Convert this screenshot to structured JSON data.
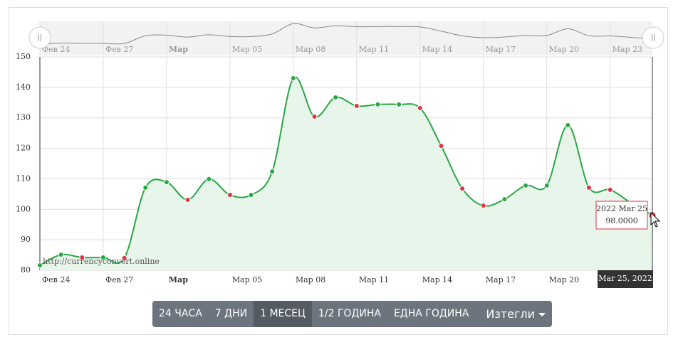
{
  "chart_data": {
    "type": "area",
    "categories": [
      "Фев 24",
      null,
      null,
      "Фев 27",
      null,
      null,
      "Мар",
      null,
      null,
      "Мар 05",
      null,
      null,
      "Мар 08",
      null,
      null,
      "Мар 11",
      null,
      null,
      "Мар 14",
      null,
      null,
      "Мар 17",
      null,
      null,
      "Мар 20",
      null,
      null,
      "Мар 23",
      null,
      null
    ],
    "values": [
      81.6,
      85.1,
      84.2,
      84.2,
      84.0,
      107.1,
      108.9,
      103.1,
      109.9,
      104.7,
      104.7,
      112.4,
      143.0,
      130.4,
      136.7,
      133.9,
      134.4,
      134.4,
      133.2,
      120.8,
      106.8,
      101.2,
      103.3,
      107.8,
      107.8,
      127.6,
      107.1,
      106.4,
      102.0,
      98.0
    ],
    "value_labels": [
      null,
      null,
      null,
      null,
      null,
      null,
      null,
      null,
      null,
      null,
      null,
      null,
      null,
      null,
      null,
      null,
      null,
      null,
      null,
      null,
      null,
      null,
      null,
      null,
      null,
      null,
      null,
      null,
      null,
      "98.0000"
    ],
    "color": "#28a745",
    "up_color": "#28a745",
    "down_color": "#dc3545",
    "fill_color": "#e8f5ea",
    "ylim": [
      80,
      150
    ],
    "yticks": [
      80,
      90,
      100,
      110,
      120,
      130,
      140,
      150
    ],
    "grid": true,
    "tooltip_title": "2022 Mar 25",
    "crosshair_label": "Mar 25, 2022",
    "credit": "http://currencyconvert.online"
  },
  "buttons": [
    "24 ЧАСА",
    "7 ДНИ",
    "1 МЕСЕЦ",
    "1/2 ГОДИНА",
    "ЕДНА ГОДИНА",
    "Изтегли"
  ],
  "active_button": 2
}
